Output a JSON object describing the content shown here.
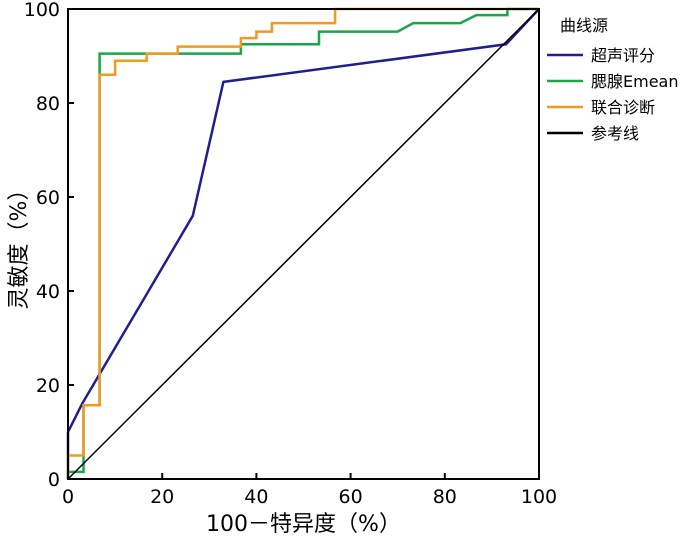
{
  "chart_data": {
    "type": "line",
    "xlabel": "100－特异度（%）",
    "ylabel": "灵敏度（%）",
    "xlim": [
      0,
      100
    ],
    "ylim": [
      0,
      100
    ],
    "xticks": [
      0,
      20,
      40,
      60,
      80,
      100
    ],
    "yticks": [
      0,
      20,
      40,
      60,
      80,
      100
    ],
    "grid": false,
    "legend": {
      "title": "曲线源",
      "placement": "right"
    },
    "series": [
      {
        "name": "超声评分",
        "color": "#1f1f8f",
        "points": [
          [
            0,
            0
          ],
          [
            0,
            10
          ],
          [
            3,
            16
          ],
          [
            26.5,
            56
          ],
          [
            33,
            84.5
          ],
          [
            93,
            92.5
          ],
          [
            100,
            100
          ]
        ]
      },
      {
        "name": "腮腺Emean",
        "color": "#1aa64a",
        "points": [
          [
            0,
            0
          ],
          [
            0,
            1.5
          ],
          [
            3.3,
            1.5
          ],
          [
            3.3,
            15.7
          ],
          [
            6.7,
            15.7
          ],
          [
            6.7,
            90.5
          ],
          [
            36.7,
            90.5
          ],
          [
            36.7,
            92.5
          ],
          [
            53.3,
            92.5
          ],
          [
            53.3,
            95.2
          ],
          [
            70,
            95.2
          ],
          [
            73.3,
            97
          ],
          [
            83.3,
            97
          ],
          [
            86.7,
            98.7
          ],
          [
            93.3,
            98.7
          ],
          [
            93.3,
            100
          ],
          [
            100,
            100
          ]
        ]
      },
      {
        "name": "联合诊断",
        "color": "#f39a1e",
        "points": [
          [
            0,
            0
          ],
          [
            0,
            5
          ],
          [
            3.3,
            5
          ],
          [
            3.3,
            15.7
          ],
          [
            6.7,
            15.7
          ],
          [
            6.7,
            86
          ],
          [
            10,
            86
          ],
          [
            10,
            89
          ],
          [
            16.7,
            89
          ],
          [
            16.7,
            90.5
          ],
          [
            23.3,
            90.5
          ],
          [
            23.3,
            92
          ],
          [
            36.7,
            92
          ],
          [
            36.7,
            93.8
          ],
          [
            40,
            93.8
          ],
          [
            40,
            95.2
          ],
          [
            43.3,
            95.2
          ],
          [
            43.3,
            97
          ],
          [
            56.7,
            97
          ],
          [
            56.7,
            100
          ],
          [
            100,
            100
          ]
        ]
      },
      {
        "name": "参考线",
        "color": "#000000",
        "points": [
          [
            0,
            0
          ],
          [
            100,
            100
          ]
        ]
      }
    ]
  }
}
